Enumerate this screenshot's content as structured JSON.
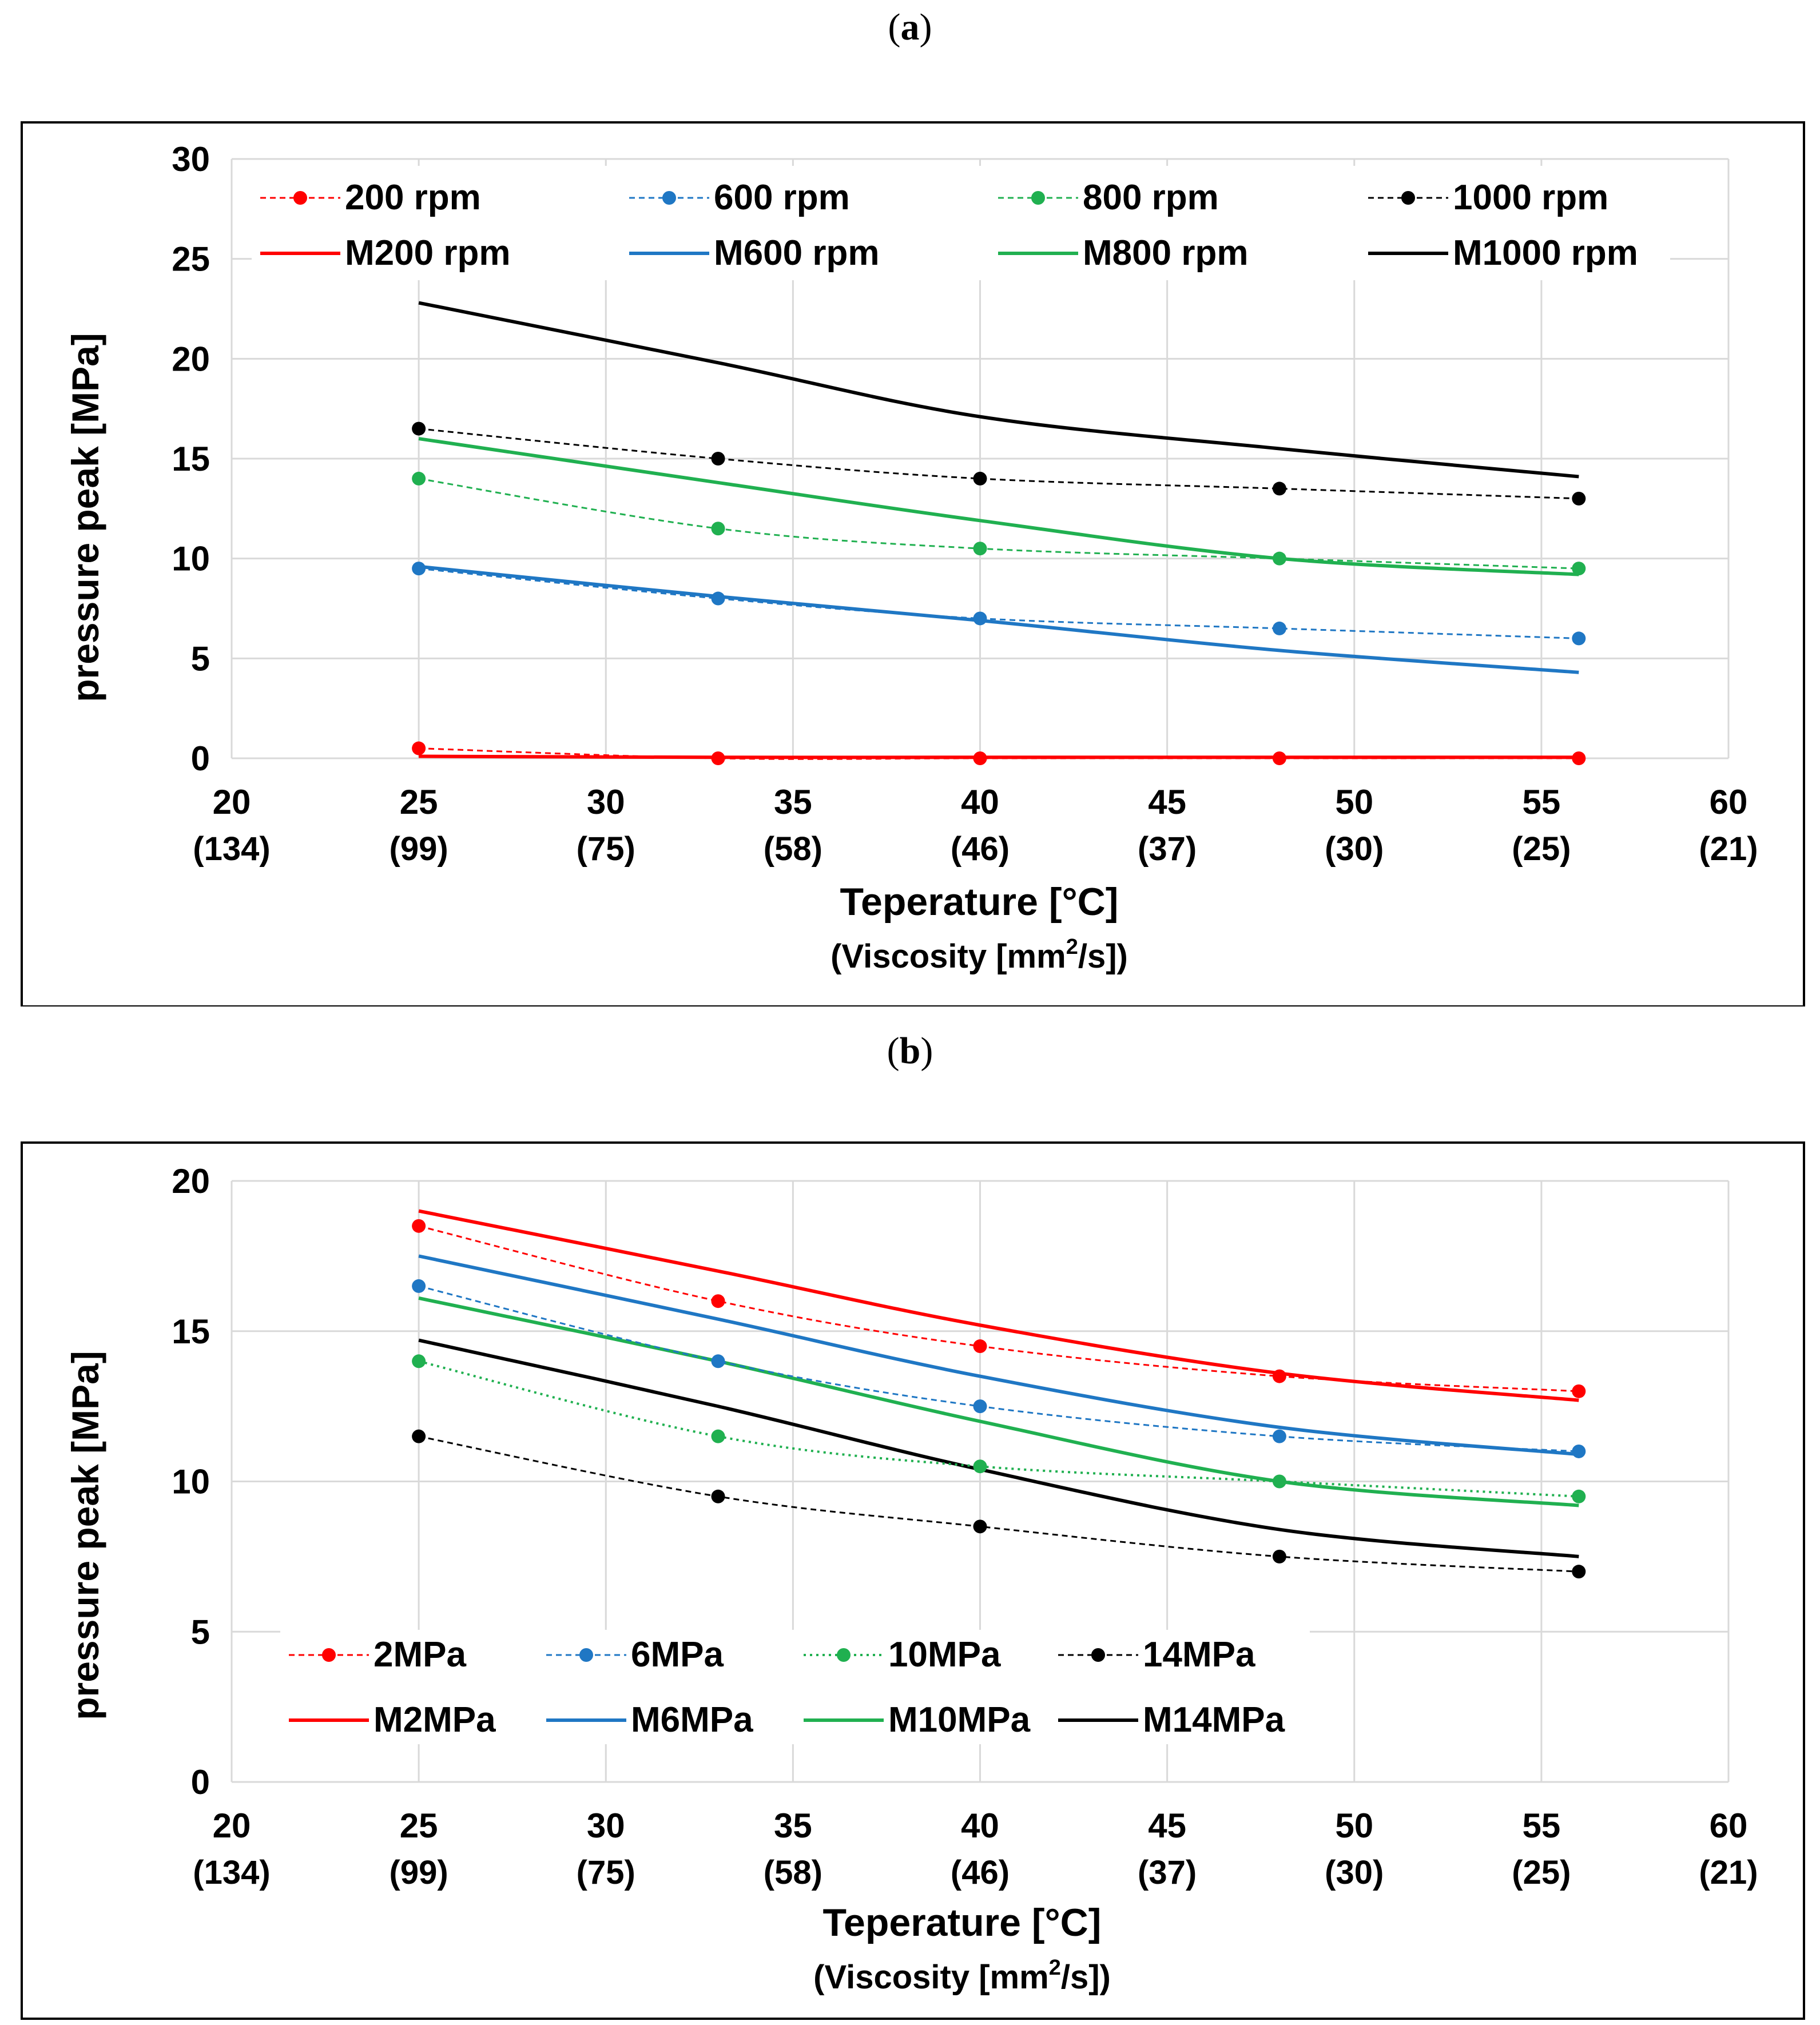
{
  "panels": [
    {
      "label_left": "(",
      "label_letter": "a",
      "label_right": ")",
      "chart_data": {
        "type": "line",
        "ylabel": "pressure peak [MPa]",
        "xlabel": "Teperature [°C]",
        "xlabel_sub_prefix": "(Viscosity [mm",
        "xlabel_sub_sup": "2",
        "xlabel_sub_suffix": "/s])",
        "xlim": [
          20,
          60
        ],
        "ylim": [
          0,
          30
        ],
        "x_ticks": [
          "20",
          "25",
          "30",
          "35",
          "40",
          "45",
          "50",
          "55",
          "60"
        ],
        "x_ticks_viscosity": [
          "(134)",
          "(99)",
          "(75)",
          "(58)",
          "(46)",
          "(37)",
          "(30)",
          "(25)",
          "(21)"
        ],
        "y_ticks": [
          "0",
          "5",
          "10",
          "15",
          "20",
          "25",
          "30"
        ],
        "legend_position": "top",
        "series": [
          {
            "name": "200 rpm",
            "style": "dashed-marker",
            "color": "#ff0000",
            "x": [
              25,
              33,
              40,
              48,
              56
            ],
            "y": [
              0.5,
              0,
              0,
              0,
              0
            ]
          },
          {
            "name": "600 rpm",
            "style": "dashed-marker",
            "color": "#1f77c4",
            "x": [
              25,
              33,
              40,
              48,
              56
            ],
            "y": [
              9.5,
              8,
              7,
              6.5,
              6
            ]
          },
          {
            "name": "800 rpm",
            "style": "dashed-marker",
            "color": "#20b050",
            "x": [
              25,
              33,
              40,
              48,
              56
            ],
            "y": [
              14,
              11.5,
              10.5,
              10,
              9.5
            ]
          },
          {
            "name": "1000 rpm",
            "style": "dashed-marker",
            "color": "#000000",
            "x": [
              25,
              33,
              40,
              48,
              56
            ],
            "y": [
              16.5,
              15,
              14,
              13.5,
              13
            ]
          },
          {
            "name": "M200 rpm",
            "style": "solid",
            "color": "#ff0000",
            "x": [
              25,
              33,
              40,
              48,
              56
            ],
            "y": [
              0.1,
              0.05,
              0.05,
              0.05,
              0.05
            ]
          },
          {
            "name": "M600 rpm",
            "style": "solid",
            "color": "#1f77c4",
            "x": [
              25,
              33,
              40,
              48,
              56
            ],
            "y": [
              9.6,
              8.1,
              6.9,
              5.4,
              4.3
            ]
          },
          {
            "name": "M800 rpm",
            "style": "solid",
            "color": "#20b050",
            "x": [
              25,
              33,
              40,
              48,
              56
            ],
            "y": [
              16,
              13.8,
              11.9,
              10,
              9.2
            ]
          },
          {
            "name": "M1000 rpm",
            "style": "solid",
            "color": "#000000",
            "x": [
              25,
              33,
              40,
              48,
              56
            ],
            "y": [
              22.8,
              19.8,
              17.1,
              15.5,
              14.1
            ]
          }
        ]
      }
    },
    {
      "label_left": "(",
      "label_letter": "b",
      "label_right": ")",
      "chart_data": {
        "type": "line",
        "ylabel": "pressure peak [MPa]",
        "xlabel": "Teperature [°C]",
        "xlabel_sub_prefix": "(Viscosity [mm",
        "xlabel_sub_sup": "2",
        "xlabel_sub_suffix": "/s])",
        "xlim": [
          20,
          60
        ],
        "ylim": [
          0,
          20
        ],
        "x_ticks": [
          "20",
          "25",
          "30",
          "35",
          "40",
          "45",
          "50",
          "55",
          "60"
        ],
        "x_ticks_viscosity": [
          "(134)",
          "(99)",
          "(75)",
          "(58)",
          "(46)",
          "(37)",
          "(30)",
          "(25)",
          "(21)"
        ],
        "y_ticks": [
          "0",
          "5",
          "10",
          "15",
          "20"
        ],
        "legend_position": "bottom-left",
        "series": [
          {
            "name": "2MPa",
            "style": "dashed-marker",
            "color": "#ff0000",
            "x": [
              25,
              33,
              40,
              48,
              56
            ],
            "y": [
              18.5,
              16,
              14.5,
              13.5,
              13
            ]
          },
          {
            "name": "6MPa",
            "style": "dashed-marker",
            "color": "#1f77c4",
            "x": [
              25,
              33,
              40,
              48,
              56
            ],
            "y": [
              16.5,
              14,
              12.5,
              11.5,
              11
            ]
          },
          {
            "name": "10MPa",
            "style": "dotted-marker",
            "color": "#20b050",
            "x": [
              25,
              33,
              40,
              48,
              56
            ],
            "y": [
              14,
              11.5,
              10.5,
              10,
              9.5
            ]
          },
          {
            "name": "14MPa",
            "style": "dashed-marker",
            "color": "#000000",
            "x": [
              25,
              33,
              40,
              48,
              56
            ],
            "y": [
              11.5,
              9.5,
              8.5,
              7.5,
              7
            ]
          },
          {
            "name": "M2MPa",
            "style": "solid",
            "color": "#ff0000",
            "x": [
              25,
              33,
              40,
              48,
              56
            ],
            "y": [
              19,
              17,
              15.2,
              13.6,
              12.7
            ]
          },
          {
            "name": "M6MPa",
            "style": "solid",
            "color": "#1f77c4",
            "x": [
              25,
              33,
              40,
              48,
              56
            ],
            "y": [
              17.5,
              15.4,
              13.5,
              11.8,
              10.9
            ]
          },
          {
            "name": "M10MPa",
            "style": "solid",
            "color": "#20b050",
            "x": [
              25,
              33,
              40,
              48,
              56
            ],
            "y": [
              16.1,
              14,
              12,
              10,
              9.2
            ]
          },
          {
            "name": "M14MPa",
            "style": "solid",
            "color": "#000000",
            "x": [
              25,
              33,
              40,
              48,
              56
            ],
            "y": [
              14.7,
              12.5,
              10.4,
              8.4,
              7.5
            ]
          }
        ]
      }
    }
  ]
}
